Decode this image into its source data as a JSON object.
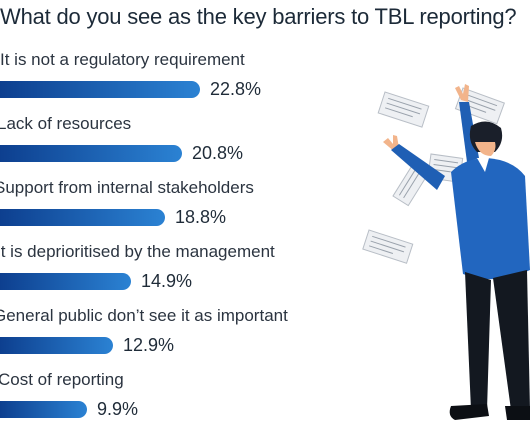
{
  "chart_data": {
    "type": "bar",
    "orientation": "horizontal",
    "title": "What do you see as the key barriers to TBL reporting?",
    "categories": [
      "It is not a regulatory requirement",
      "Lack of resources",
      "Support from internal stakeholders",
      "It is deprioritised by the management",
      "General public don’t see it as important",
      "Cost of reporting"
    ],
    "values": [
      22.8,
      20.8,
      18.8,
      14.9,
      12.9,
      9.9
    ],
    "value_labels": [
      "22.8%",
      "20.8%",
      "18.8%",
      "14.9%",
      "12.9%",
      "9.9%"
    ],
    "value_suffix": "%",
    "xlim": [
      0,
      22.8
    ],
    "grid": false,
    "legend": "none"
  },
  "colors": {
    "bar_start": "#0d3f8f",
    "bar_end": "#2b82d3",
    "title": "#1c2a38",
    "text": "#2b3440"
  },
  "illustration": {
    "icon": "man-catching-papers-icon"
  }
}
